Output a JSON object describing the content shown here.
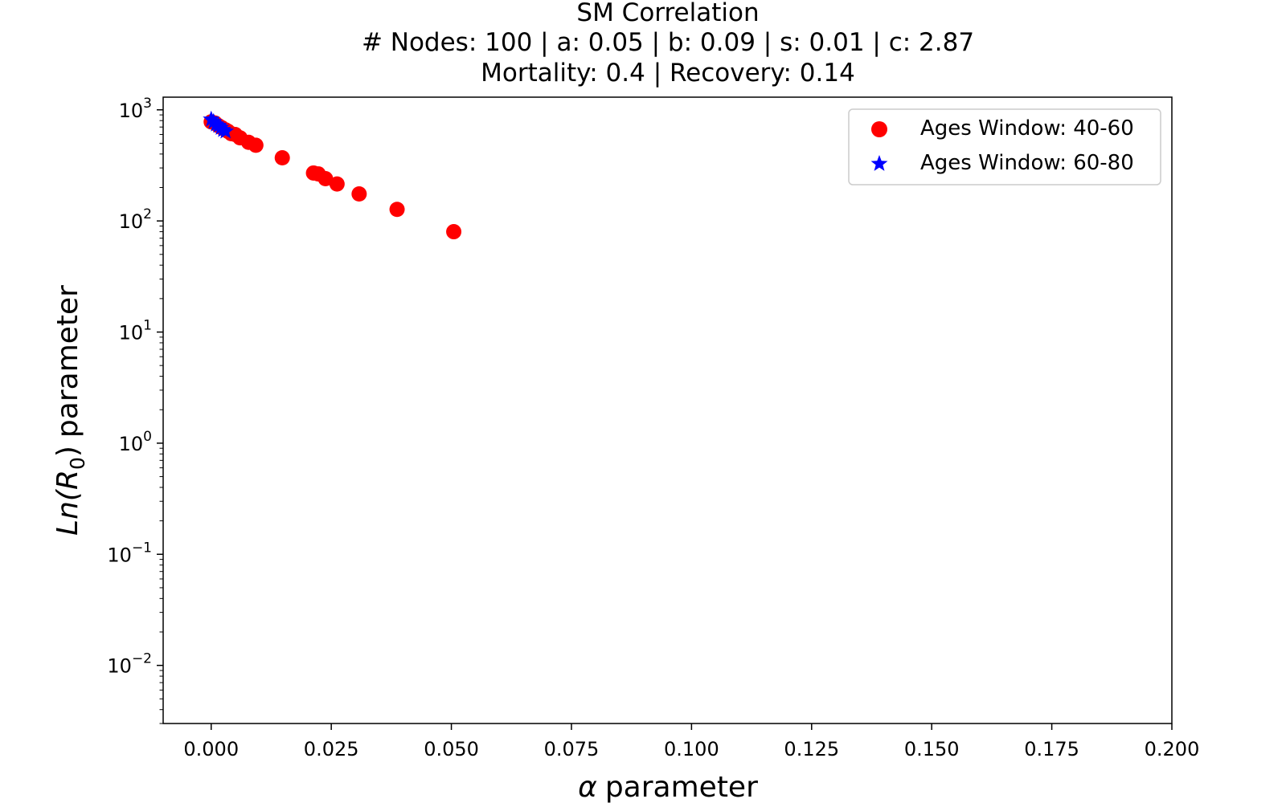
{
  "chart_data": {
    "type": "scatter",
    "title": "SM Correlation",
    "subtitle_lines": [
      "# Nodes: 100 | a: 0.05 | b: 0.09 | s: 0.01 | c: 2.87",
      "Mortality: 0.4 | Recovery: 0.14"
    ],
    "xlabel_symbol": "α",
    "xlabel_text": "parameter",
    "ylabel_math": {
      "base": "Ln(R",
      "sub": "0",
      "close": ")"
    },
    "ylabel_text": "parameter",
    "xlim": [
      -0.01,
      0.2
    ],
    "ylim": [
      0.003,
      1300
    ],
    "y_scale": "log",
    "x_ticks": [
      0.0,
      0.025,
      0.05,
      0.075,
      0.1,
      0.125,
      0.15,
      0.175,
      0.2
    ],
    "x_tick_labels": [
      "0.000",
      "0.025",
      "0.050",
      "0.075",
      "0.100",
      "0.125",
      "0.150",
      "0.175",
      "0.200"
    ],
    "y_ticks": [
      {
        "value": 1000,
        "base": "10",
        "exp": "3"
      },
      {
        "value": 100,
        "base": "10",
        "exp": "2"
      },
      {
        "value": 10,
        "base": "10",
        "exp": "1"
      },
      {
        "value": 1,
        "base": "10",
        "exp": "0"
      },
      {
        "value": 0.1,
        "base": "10",
        "exp": "−1"
      },
      {
        "value": 0.01,
        "base": "10",
        "exp": "−2"
      }
    ],
    "legend_position": "upper-right",
    "series": [
      {
        "name": "Ages Window: 40-60",
        "marker": "circle",
        "color": "#ff0000",
        "x": [
          0.0,
          0.0008,
          0.0015,
          0.0022,
          0.003,
          0.0035,
          0.0042,
          0.005,
          0.006,
          0.0078,
          0.0093,
          0.0148,
          0.0213,
          0.0223,
          0.0238,
          0.0262,
          0.0308,
          0.0387,
          0.0505
        ],
        "y": [
          780,
          760,
          720,
          690,
          660,
          640,
          610,
          600,
          560,
          510,
          480,
          370,
          270,
          265,
          240,
          215,
          175,
          127,
          80
        ]
      },
      {
        "name": "Ages Window: 60-80",
        "marker": "star",
        "color": "#0000ff",
        "x": [
          0.0,
          0.0005,
          0.001,
          0.0015,
          0.002,
          0.0025,
          0.003
        ],
        "y": [
          820,
          780,
          740,
          720,
          690,
          660,
          640
        ]
      }
    ]
  }
}
